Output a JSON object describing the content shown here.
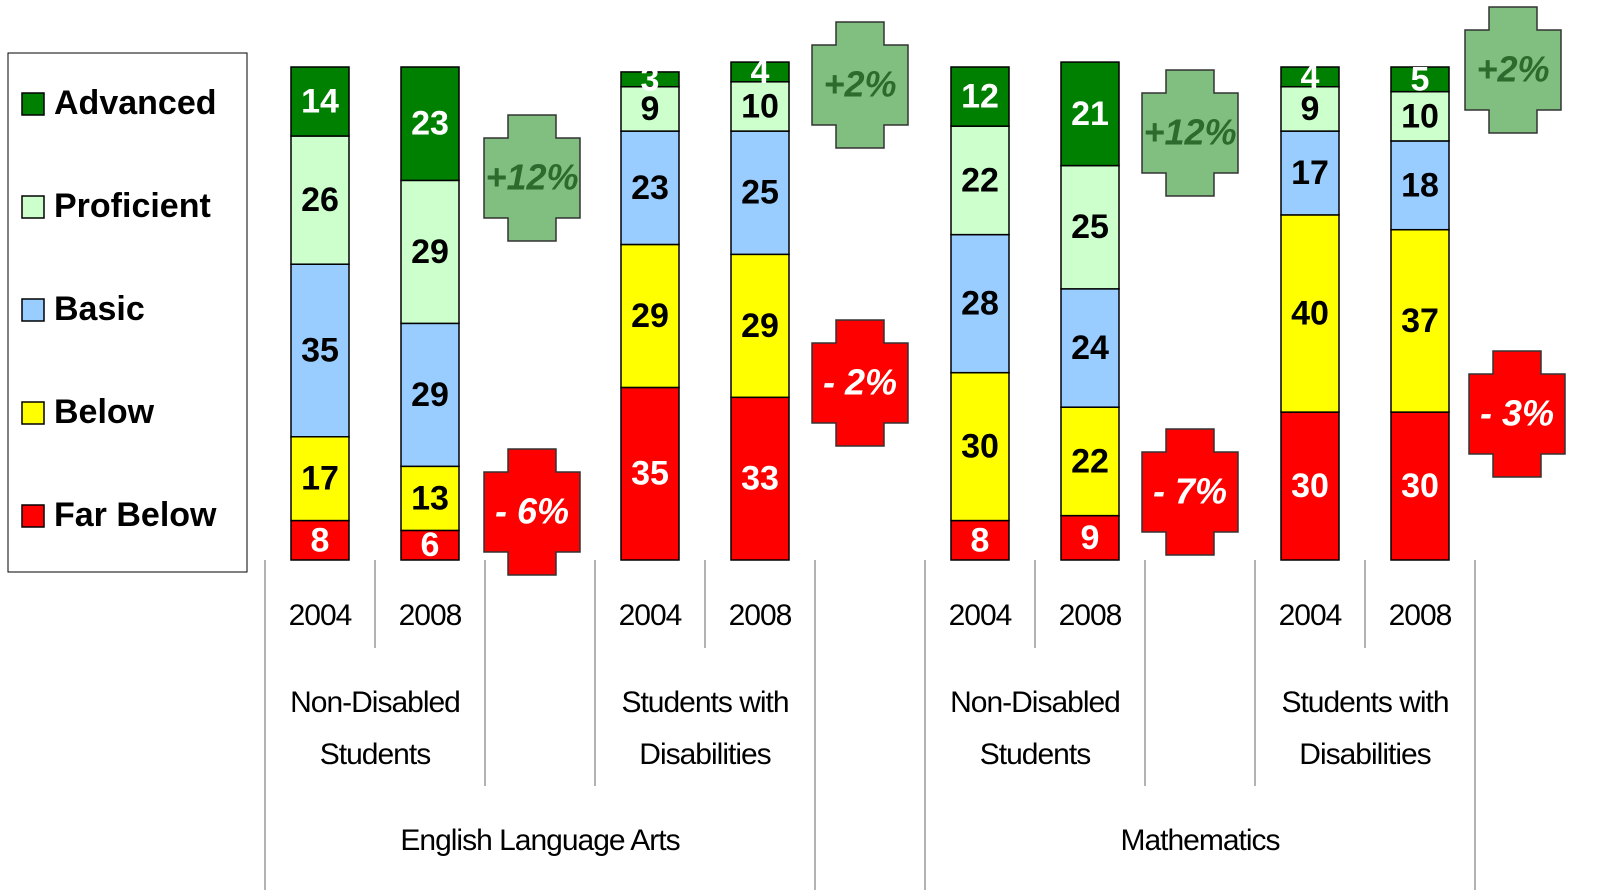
{
  "chart_data": {
    "type": "stacked_bar",
    "categories": [
      "2004",
      "2008",
      "2004",
      "2008",
      "2004",
      "2008",
      "2004",
      "2008"
    ],
    "groups": [
      "Non-Disabled Students",
      "Students with Disabilities",
      "Non-Disabled Students",
      "Students with Disabilities"
    ],
    "subjects": [
      "English Language Arts",
      "Mathematics"
    ],
    "series": [
      {
        "name": "Far Below",
        "color": "#ff0000",
        "values": [
          8,
          6,
          35,
          33,
          8,
          9,
          30,
          30
        ]
      },
      {
        "name": "Below",
        "color": "#ffff00",
        "values": [
          17,
          13,
          29,
          29,
          30,
          22,
          40,
          37
        ]
      },
      {
        "name": "Basic",
        "color": "#99ccff",
        "values": [
          35,
          29,
          23,
          25,
          28,
          24,
          17,
          18
        ]
      },
      {
        "name": "Proficient",
        "color": "#ccffcc",
        "values": [
          26,
          29,
          9,
          10,
          22,
          25,
          9,
          10
        ]
      },
      {
        "name": "Advanced",
        "color": "#008000",
        "values": [
          14,
          23,
          3,
          4,
          12,
          21,
          4,
          5
        ]
      }
    ],
    "annotations": [
      {
        "text": "+12%",
        "color": "#80bf80"
      },
      {
        "text": "- 6%",
        "color": "#ff0000"
      },
      {
        "text": "+2%",
        "color": "#80bf80"
      },
      {
        "text": "- 2%",
        "color": "#ff0000"
      },
      {
        "text": "+12%",
        "color": "#80bf80"
      },
      {
        "text": "- 7%",
        "color": "#ff0000"
      },
      {
        "text": "+2%",
        "color": "#80bf80"
      },
      {
        "text": "- 3%",
        "color": "#ff0000"
      }
    ]
  }
}
